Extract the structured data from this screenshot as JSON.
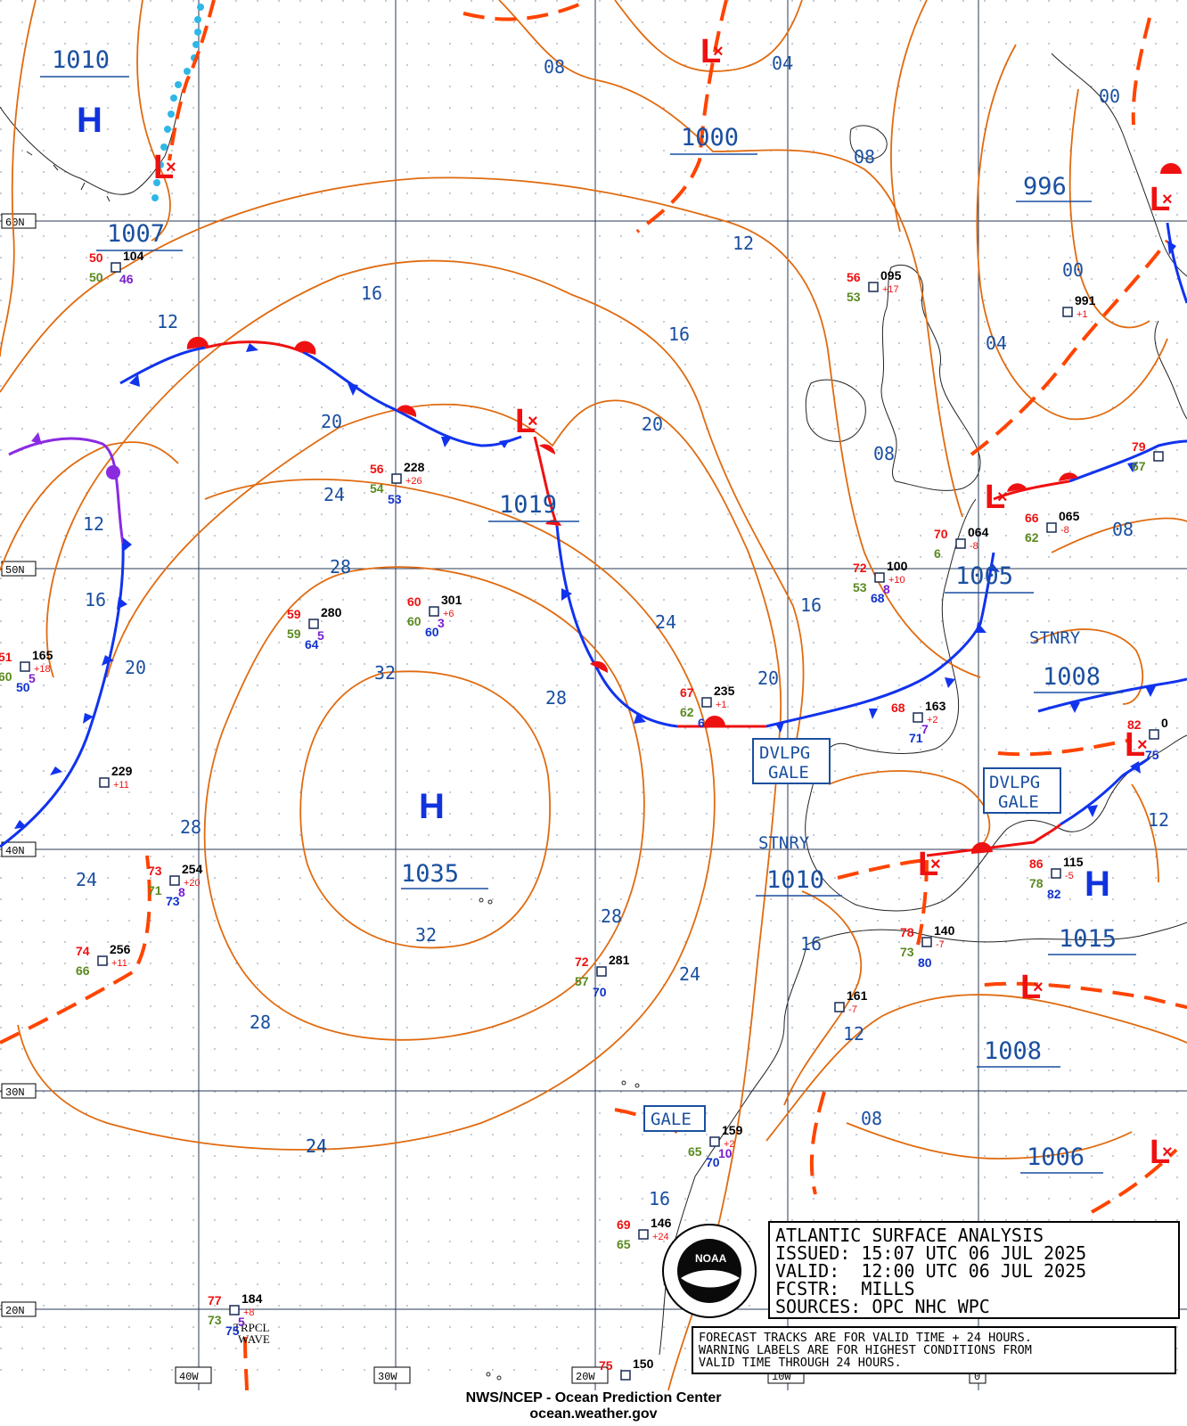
{
  "title_block": {
    "line1": "ATLANTIC SURFACE ANALYSIS",
    "line2": "ISSUED: 15:07 UTC 06 JUL 2025",
    "line3": "VALID:  12:00 UTC 06 JUL 2025",
    "line4": "FCSTR:  MILLS",
    "line5": "SOURCES: OPC NHC WPC"
  },
  "note": {
    "line1": "FORECAST TRACKS ARE FOR VALID TIME + 24 HOURS.",
    "line2": "WARNING LABELS ARE FOR HIGHEST CONDITIONS FROM",
    "line3": "VALID TIME THROUGH 24 HOURS."
  },
  "credit": {
    "line1": "NWS/NCEP - Ocean Prediction Center",
    "line2": "ocean.weather.gov"
  },
  "logo_text": "NOAA",
  "grid": {
    "lat_labels": [
      "60N",
      "50N",
      "40N",
      "30N",
      "20N"
    ],
    "lon_labels": [
      "40W",
      "30W",
      "20W",
      "10W",
      "0"
    ]
  },
  "pressure_centers": [
    {
      "kind": "H",
      "value": "1010"
    },
    {
      "kind": "L",
      "value": "1007"
    },
    {
      "kind": "L",
      "value": "1000"
    },
    {
      "kind": "L",
      "value": "996"
    },
    {
      "kind": "L",
      "value": "1019"
    },
    {
      "kind": "H",
      "value": "1035"
    },
    {
      "kind": "L",
      "value": "1005"
    },
    {
      "kind": "L",
      "value": "1008"
    },
    {
      "kind": "L",
      "value": "1010"
    },
    {
      "kind": "H",
      "value": "1015"
    },
    {
      "kind": "L",
      "value": "1008"
    },
    {
      "kind": "L",
      "value": "1006"
    }
  ],
  "isobar_labels": [
    "08",
    "04",
    "08",
    "00",
    "00",
    "04",
    "12",
    "16",
    "16",
    "12",
    "20",
    "20",
    "24",
    "12",
    "16",
    "20",
    "28",
    "32",
    "28",
    "24",
    "20",
    "16",
    "08",
    "08",
    "24",
    "28",
    "24",
    "28",
    "24",
    "32",
    "28",
    "24",
    "16",
    "12",
    "12",
    "16",
    "12",
    "08"
  ],
  "warnings": [
    "DVLPG\nGALE",
    "DVLPG\nGALE",
    "GALE"
  ],
  "front_labels": [
    "STNRY",
    "STNRY",
    "TRPCL\nWAVE"
  ],
  "stations": [
    {
      "temp": "50",
      "pres": "104",
      "dew": "50",
      "wx": "46"
    },
    {
      "temp": "56",
      "pres": "095",
      "dew": "53",
      "tend": "+17"
    },
    {
      "pres": "991",
      "tend": "+1"
    },
    {
      "temp": "56",
      "pres": "228",
      "dew": "54",
      "tend": "+26",
      "vis": "53"
    },
    {
      "temp": "59",
      "pres": "280",
      "dew": "59",
      "vis": "64",
      "wx": "5"
    },
    {
      "temp": "60",
      "pres": "301",
      "dew": "60",
      "tend": "+6",
      "wx": "3",
      "vis": "60"
    },
    {
      "temp": "51",
      "pres": "165",
      "dew": "60",
      "tend": "+18",
      "wx": "5",
      "vis": "50"
    },
    {
      "pres": "229",
      "tend": "+11"
    },
    {
      "temp": "73",
      "pres": "254",
      "dew": "71",
      "tend": "+20",
      "wx": "8",
      "vis": "73"
    },
    {
      "temp": "74",
      "pres": "256",
      "dew": "66",
      "tend": "+11"
    },
    {
      "temp": "67",
      "pres": "235",
      "dew": "62",
      "tend": "+1",
      "vis": "6"
    },
    {
      "temp": "72",
      "pres": "281",
      "dew": "57",
      "vis": "70"
    },
    {
      "temp": "72",
      "pres": "100",
      "dew": "53",
      "tend": "+10",
      "wx": "8",
      "vis": "68"
    },
    {
      "temp": "70",
      "pres": "064",
      "dew": "6",
      "tend": "-8"
    },
    {
      "temp": "66",
      "pres": "065",
      "dew": "62",
      "tend": "-8"
    },
    {
      "temp": "79",
      "dew": "67"
    },
    {
      "temp": "68",
      "pres": "163",
      "tend": "+2",
      "wx": "7",
      "vis": "71"
    },
    {
      "temp": "82",
      "pres": "0",
      "vis": "75"
    },
    {
      "temp": "86",
      "pres": "115",
      "dew": "78",
      "tend": "-5",
      "vis": "82"
    },
    {
      "temp": "78",
      "pres": "140",
      "dew": "73",
      "tend": "-7",
      "vis": "80"
    },
    {
      "pres": "161",
      "tend": "-7"
    },
    {
      "pres": "159",
      "dew": "65",
      "tend": "+2",
      "wx": "10",
      "vis": "70"
    },
    {
      "temp": "69",
      "pres": "146",
      "dew": "65",
      "tend": "+24"
    },
    {
      "temp": "77",
      "pres": "184",
      "dew": "73",
      "tend": "+8",
      "wx": "5",
      "vis": "75"
    },
    {
      "temp": "75",
      "pres": "150"
    }
  ],
  "colors": {
    "isobar": "#e06b10",
    "trough": "#ff4400",
    "cold_front": "#1133ee",
    "warm_front": "#ee1111",
    "occluded": "#8a2be2",
    "grid": "#2a3a55",
    "label_blue": "#1a4fa0",
    "temp": "#ee1111",
    "dew": "#5a8a1f",
    "vis": "#1133cc",
    "wx": "#7a1fd0"
  }
}
